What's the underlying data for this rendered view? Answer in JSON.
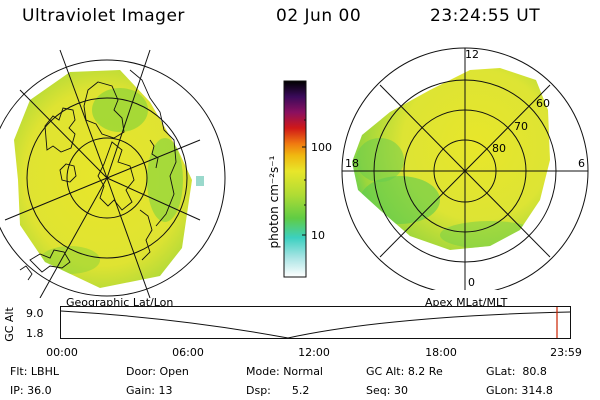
{
  "header": {
    "instrument": "Ultraviolet Imager",
    "date": "02 Jun 00",
    "time": "23:24:55 UT"
  },
  "geo_panel": {
    "label": "Geographic Lat/Lon"
  },
  "apex_panel": {
    "label": "Apex MLat/MLT",
    "mlt_labels": {
      "top": "12",
      "left": "18",
      "right": "6",
      "bottom": "0"
    },
    "lat_labels": [
      "60",
      "70",
      "80"
    ]
  },
  "colorbar": {
    "unit_label": "photon cm⁻²s⁻¹",
    "ticks": [
      "100",
      "10"
    ],
    "scale": "log"
  },
  "altitude_strip": {
    "axis_label": "GC Alt",
    "y_ticks": [
      "9.0",
      "1.8"
    ],
    "x_ticks": [
      "00:00",
      "06:00",
      "12:00",
      "18:00",
      "23:59"
    ],
    "current_marker_color": "#cc2200"
  },
  "info": {
    "row1": [
      {
        "label": "Flt:",
        "value": "LBHL"
      },
      {
        "label": "Door:",
        "value": "Open"
      },
      {
        "label": "Mode:",
        "value": "Normal"
      },
      {
        "label": "GC Alt:",
        "value": "8.2 Re"
      },
      {
        "label": "GLat:",
        "value": "80.8"
      }
    ],
    "row2": [
      {
        "label": "IP:",
        "value": "36.0"
      },
      {
        "label": "Gain:",
        "value": "13"
      },
      {
        "label": "Dsp:",
        "value": "5.2"
      },
      {
        "label": "Seq:",
        "value": "30"
      },
      {
        "label": "GLon:",
        "value": "314.8"
      }
    ]
  },
  "colors": {
    "aurora_yellow": "#e8e62a",
    "aurora_green": "#7ed23c",
    "aurora_cyan": "#3fd0c8"
  }
}
